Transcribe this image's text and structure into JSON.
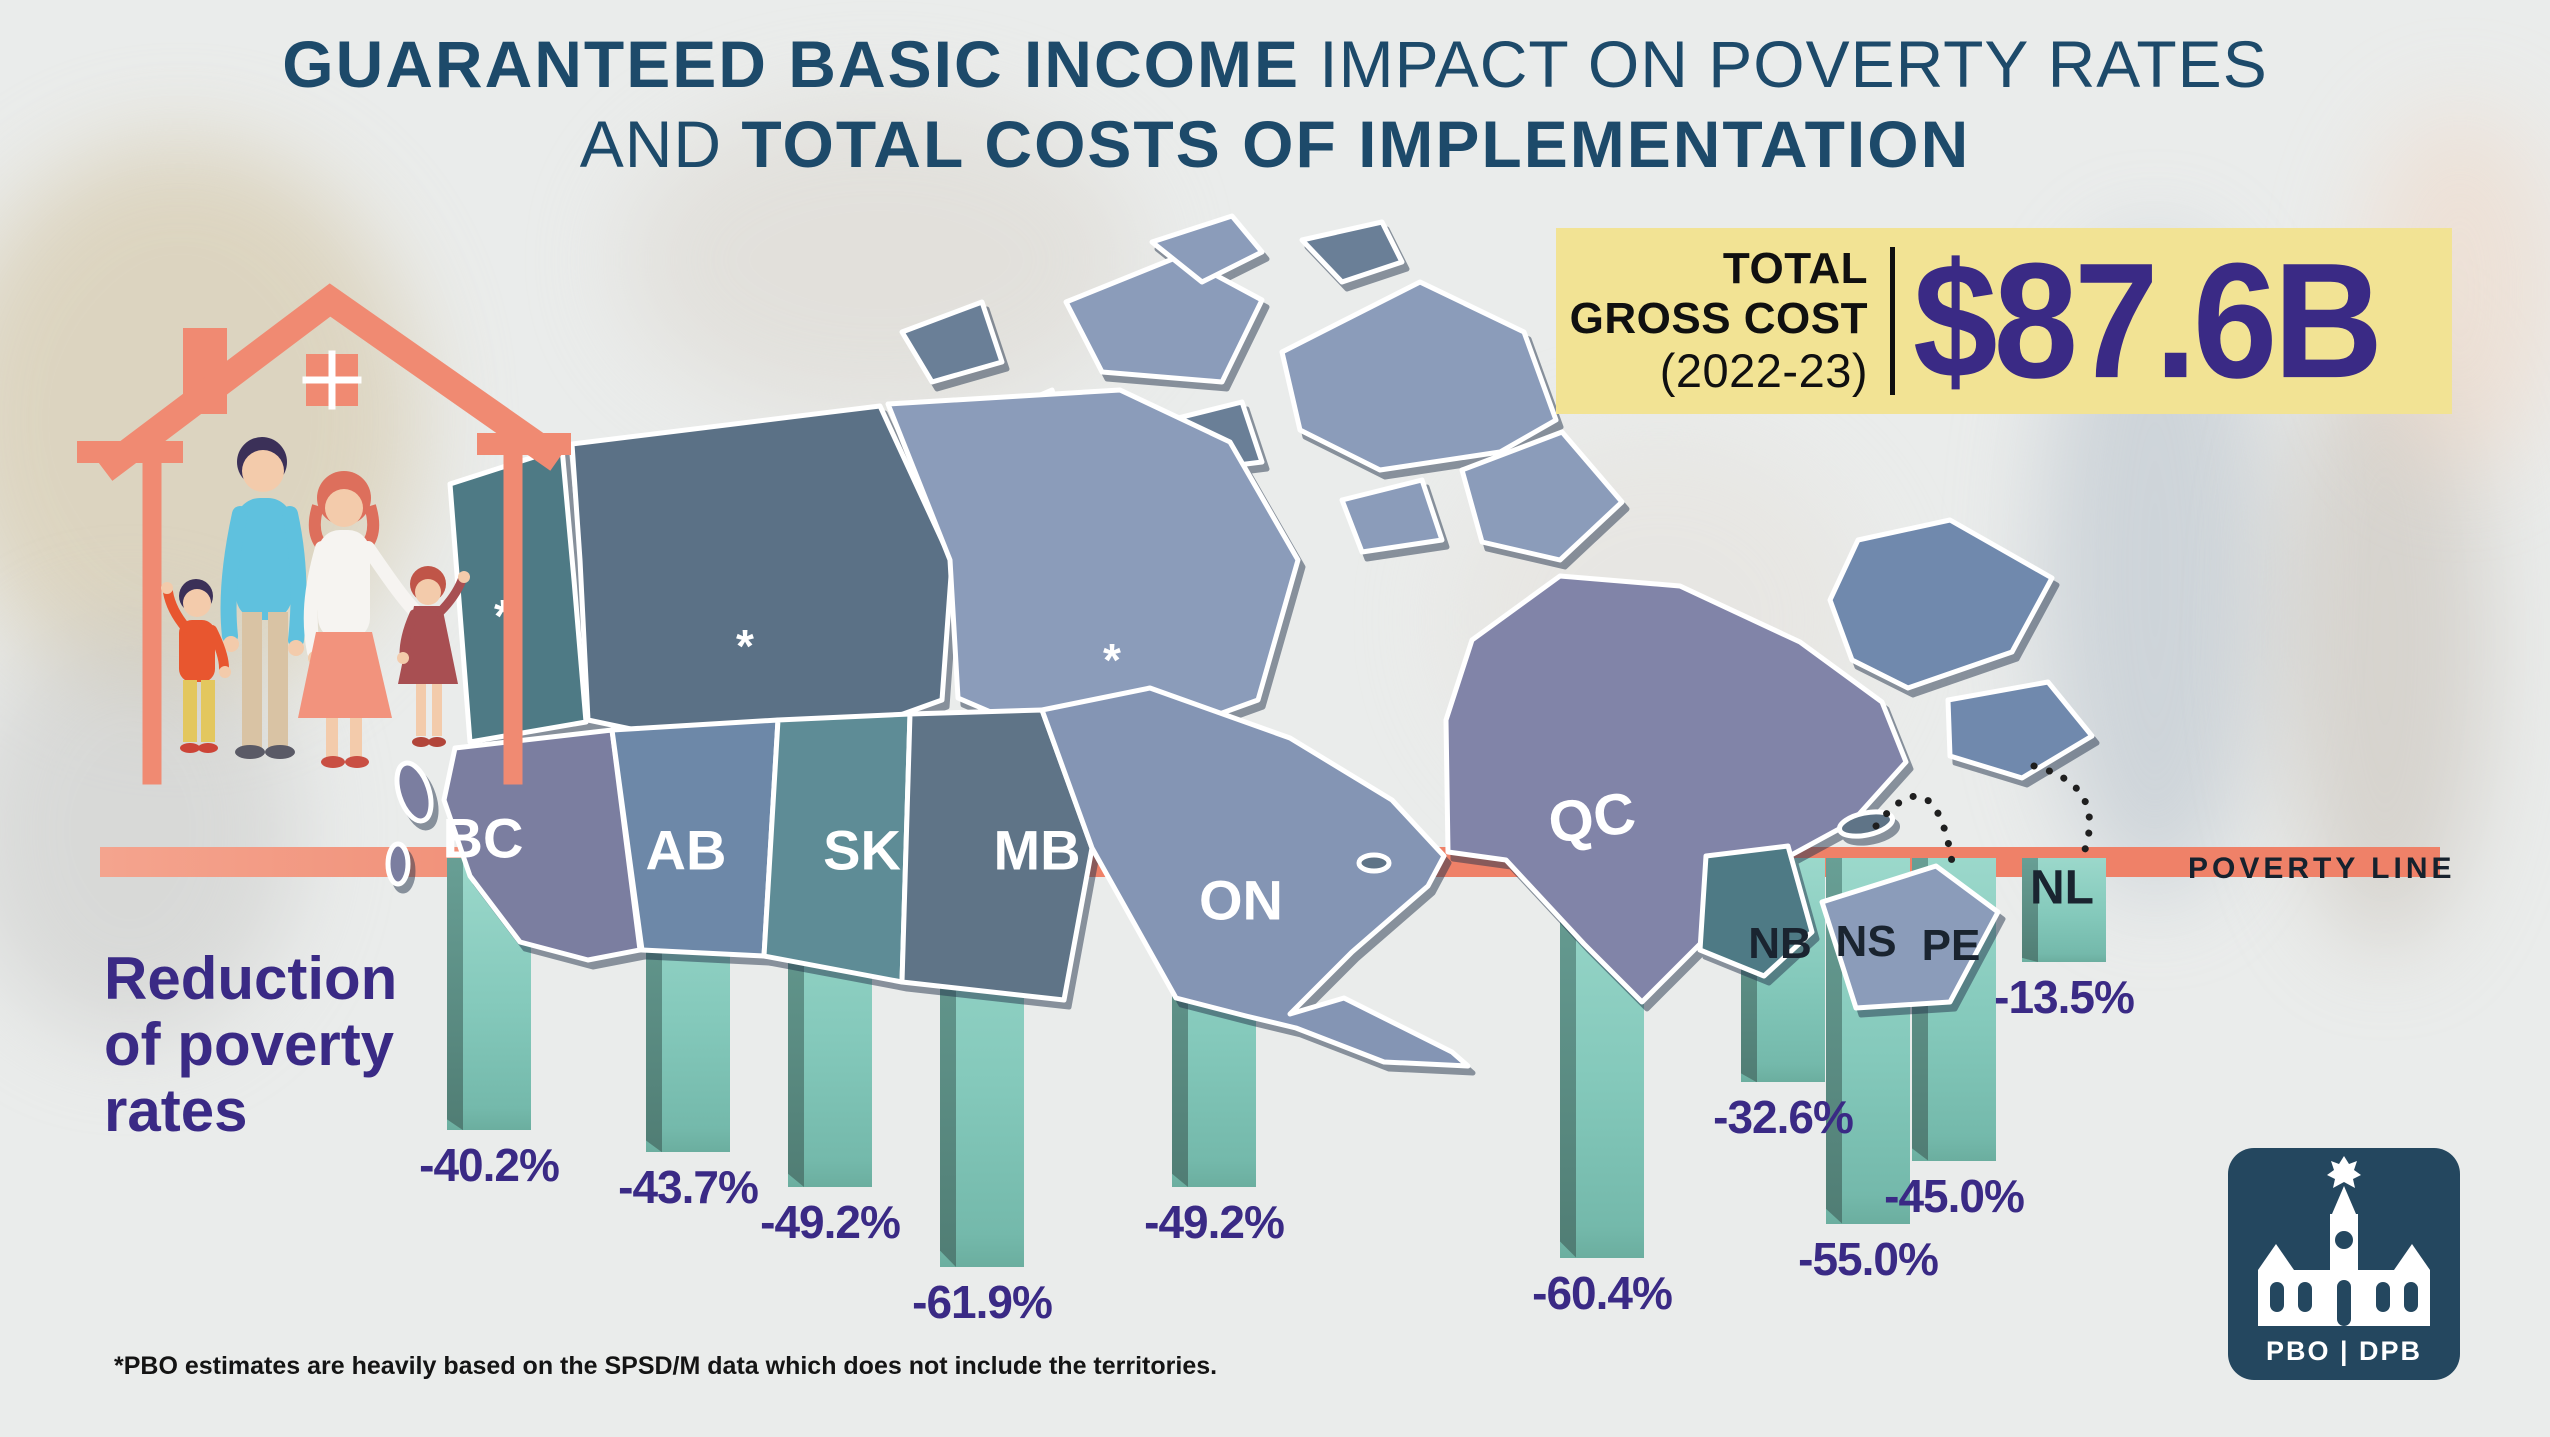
{
  "header": {
    "title1_bold": "GUARANTEED BASIC INCOME",
    "title1_light": " IMPACT ON POVERTY RATES",
    "title2_light": "AND ",
    "title2_bold": "TOTAL COSTS OF IMPLEMENTATION"
  },
  "cost_box": {
    "line1": "TOTAL",
    "line2": "GROSS COST",
    "line3": "(2022-23)",
    "amount": "$87.6B"
  },
  "poverty_line": {
    "label": "POVERTY LINE"
  },
  "left_caption": {
    "line1": "Reduction",
    "line2": "of poverty",
    "line3": "rates"
  },
  "territory_marker": "*",
  "footnote": "*PBO estimates are heavily based on the SPSD/M data which does not include the territories.",
  "logo": {
    "text": "PBO | DPB"
  },
  "chart_data": {
    "type": "bar",
    "title": "Guaranteed Basic Income impact on poverty rates and total costs of implementation",
    "subtitle": "Reduction of poverty rates by province",
    "categories": [
      "BC",
      "AB",
      "SK",
      "MB",
      "ON",
      "QC",
      "NB",
      "NS",
      "PE",
      "NL"
    ],
    "values": [
      -40.2,
      -43.7,
      -49.2,
      -61.9,
      -49.2,
      -60.4,
      -32.6,
      -55.0,
      -45.0,
      -13.5
    ],
    "value_labels": [
      "-40.2%",
      "-43.7%",
      "-49.2%",
      "-61.9%",
      "-49.2%",
      "-60.4%",
      "-32.6%",
      "-55.0%",
      "-45.0%",
      "-13.5%"
    ],
    "unit": "%",
    "baseline_label": "POVERTY LINE",
    "total_gross_cost": "$87.6B",
    "fiscal_year": "2022-23",
    "note": "*PBO estimates are heavily based on the SPSD/M data which does not include the territories.",
    "orientation": "hanging-below-baseline",
    "ylim": [
      -70,
      0
    ]
  },
  "colors": {
    "title_navy": "#1D4A6A",
    "accent_purple": "#3A2A85",
    "salmon_line": "#EF8168",
    "bar_teal": "#8ED0C4",
    "bar_teal_dark": "#5E9A90",
    "cost_box_yellow": "#F2E394",
    "logo_navy": "#24475F",
    "map_bc": "#7B7EA0",
    "map_ab": "#6D88A8",
    "map_sk": "#5E8C96",
    "map_mb": "#5F7487",
    "map_on": "#8495B4",
    "map_qc": "#8184A8",
    "map_yt": "#4E7A85",
    "map_nt": "#5B7186",
    "map_nu": "#8B9CBA",
    "map_nl": "#7089AD",
    "map_nb": "#4E7A85",
    "map_ns": "#8B9CBA",
    "map_pe": "#5F7487"
  }
}
